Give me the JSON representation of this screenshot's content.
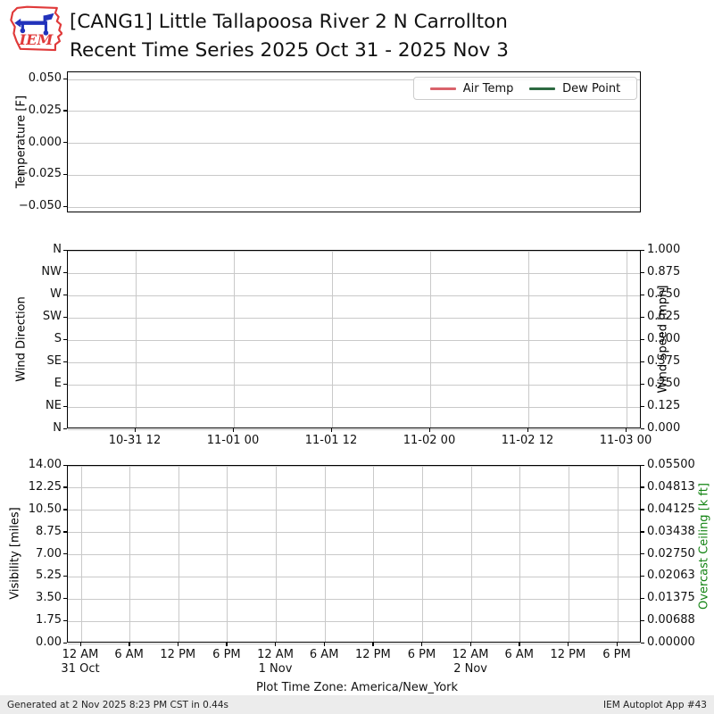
{
  "header": {
    "title_line1": "[CANG1] Little Tallapoosa River 2 N Carrollton",
    "title_line2": "Recent Time Series 2025 Oct 31 - 2025 Nov 3",
    "logo_text": "IEM"
  },
  "footer": {
    "generated": "Generated at 2 Nov 2025 8:23 PM CST in 0.44s",
    "app": "IEM Autoplot App #43"
  },
  "colors": {
    "air_temp": "#d9626b",
    "dew_point": "#2d6a41",
    "overcast_label": "#148414",
    "grid": "#c9c9c9"
  },
  "chart_data": [
    {
      "type": "line",
      "ylabel": "Temperature [F]",
      "yticks": [
        "0.050",
        "0.025",
        "0.000",
        "−0.025",
        "−0.050"
      ],
      "ylim": [
        -0.055,
        0.055
      ],
      "grid": "horizontal",
      "legend_position": "upper right",
      "legend": [
        {
          "label": "Air Temp",
          "color": "#d9626b"
        },
        {
          "label": "Dew Point",
          "color": "#2d6a41"
        }
      ],
      "series": [
        {
          "name": "Air Temp",
          "values": []
        },
        {
          "name": "Dew Point",
          "values": []
        }
      ]
    },
    {
      "type": "line",
      "ylabel_left": "Wind Direction",
      "yticks_left": [
        "N",
        "NW",
        "W",
        "SW",
        "S",
        "SE",
        "E",
        "NE",
        "N"
      ],
      "ylabel_right": "Wind Speed [mph]",
      "yticks_right": [
        "1.000",
        "0.875",
        "0.750",
        "0.625",
        "0.500",
        "0.375",
        "0.250",
        "0.125",
        "0.000"
      ],
      "ylim_right": [
        0,
        1
      ],
      "xticks": [
        "10-31 12",
        "11-01 00",
        "11-01 12",
        "11-02 00",
        "11-02 12",
        "11-03 00"
      ],
      "grid": "both",
      "series": []
    },
    {
      "type": "line",
      "ylabel_left": "Visibility [miles]",
      "yticks_left": [
        "14.00",
        "12.25",
        "10.50",
        "8.75",
        "7.00",
        "5.25",
        "3.50",
        "1.75",
        "0.00"
      ],
      "ylim_left": [
        0,
        14
      ],
      "ylabel_right": "Overcast Ceiling [k ft]",
      "yticks_right": [
        "0.05500",
        "0.04813",
        "0.04125",
        "0.03438",
        "0.02750",
        "0.02063",
        "0.01375",
        "0.00688",
        "0.00000"
      ],
      "ylim_right": [
        0,
        0.055
      ],
      "xticks": [
        "12 AM",
        "6 AM",
        "12 PM",
        "6 PM",
        "12 AM",
        "6 AM",
        "12 PM",
        "6 PM",
        "12 AM",
        "6 AM",
        "12 PM",
        "6 PM"
      ],
      "xticks_dates": [
        "31 Oct",
        "",
        "",
        "",
        "1 Nov",
        "",
        "",
        "",
        "2 Nov",
        "",
        "",
        ""
      ],
      "xlabel": "Plot Time Zone: America/New_York",
      "grid": "both",
      "series": []
    }
  ]
}
